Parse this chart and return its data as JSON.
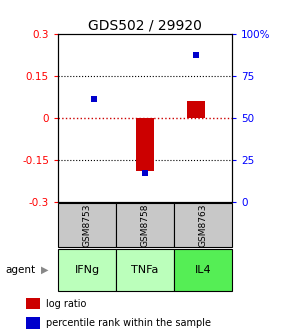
{
  "title": "GDS502 / 29920",
  "samples": [
    "GSM8753",
    "GSM8758",
    "GSM8763"
  ],
  "agents": [
    "IFNg",
    "TNFa",
    "IL4"
  ],
  "log_ratios": [
    0.0,
    -0.19,
    0.06
  ],
  "percentile_ranks": [
    61,
    17,
    87
  ],
  "ylim_left": [
    -0.3,
    0.3
  ],
  "ylim_right": [
    0,
    100
  ],
  "yticks_left": [
    -0.3,
    -0.15,
    0,
    0.15,
    0.3
  ],
  "yticks_right": [
    0,
    25,
    50,
    75,
    100
  ],
  "ytick_labels_right": [
    "0",
    "25",
    "50",
    "75",
    "100%"
  ],
  "bar_color": "#cc0000",
  "dot_color": "#0000cc",
  "hline_color": "#cc0000",
  "agent_colors": [
    "#bbffbb",
    "#bbffbb",
    "#55ee55"
  ],
  "sample_bg": "#c8c8c8",
  "legend_labels": [
    "log ratio",
    "percentile rank within the sample"
  ],
  "bar_width": 0.35,
  "dot_size": 4
}
